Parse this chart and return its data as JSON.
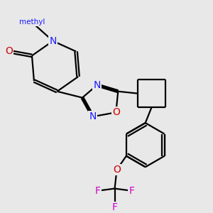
{
  "bg_color": "#e8e8e8",
  "bond_color": "#000000",
  "N_color": "#1a1aff",
  "O_color": "#cc0000",
  "F_color": "#cc00cc",
  "line_width": 1.6,
  "fig_w": 3.0,
  "fig_h": 3.0,
  "dpi": 100,
  "xlim": [
    0,
    10
  ],
  "ylim": [
    0,
    10
  ]
}
